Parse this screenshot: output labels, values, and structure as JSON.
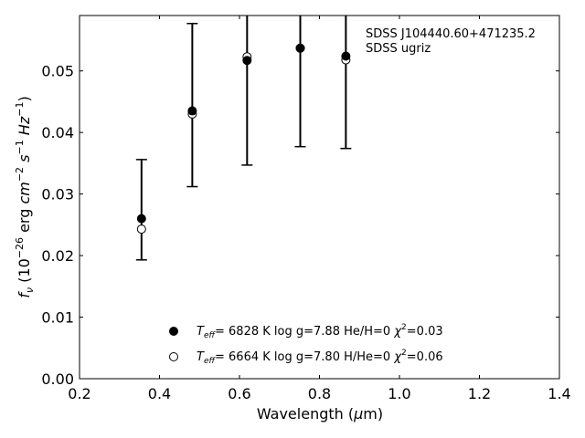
{
  "chart_data": {
    "type": "scatter",
    "xlabel": "Wavelength (μm)",
    "ylabel": "f_ν (10^-26 erg cm^-2 s^-1 Hz^-1)",
    "xlim": [
      0.2,
      1.4
    ],
    "ylim": [
      0.0,
      0.059
    ],
    "xticks": [
      "0.2",
      "0.4",
      "0.6",
      "0.8",
      "1.0",
      "1.2",
      "1.4"
    ],
    "yticks": [
      "0.00",
      "0.01",
      "0.02",
      "0.03",
      "0.04",
      "0.05"
    ],
    "grid": false,
    "legend_position": "lower-center",
    "annotations": [
      "SDSS J104440.60+471235.2",
      "SDSS ugriz"
    ],
    "observed": {
      "x": [
        0.355,
        0.482,
        0.619,
        0.752,
        0.866
      ],
      "y_low": [
        0.0193,
        0.0312,
        0.0347,
        0.0377,
        0.0374
      ],
      "y_high": [
        0.0356,
        0.0577,
        0.059,
        0.059,
        0.059
      ]
    },
    "series": [
      {
        "name": "T_eff= 6828 K log g=7.88 He/H=0 χ²=0.03",
        "marker": "filled",
        "x": [
          0.355,
          0.482,
          0.619,
          0.752,
          0.866
        ],
        "y": [
          0.026,
          0.0435,
          0.0517,
          0.0537,
          0.0524
        ]
      },
      {
        "name": "T_eff= 6664 K log g=7.80 H/He=0 χ²=0.06",
        "marker": "open",
        "x": [
          0.355,
          0.482,
          0.619,
          0.752,
          0.866
        ],
        "y": [
          0.0243,
          0.043,
          0.0523,
          0.0537,
          0.0518
        ]
      }
    ],
    "legend": [
      {
        "teff": "6828",
        "logg": "7.88",
        "comp": "He/H=0",
        "chi2": "=0.03"
      },
      {
        "teff": "6664",
        "logg": "7.80",
        "comp": "H/He=0",
        "chi2": "=0.06"
      }
    ]
  }
}
